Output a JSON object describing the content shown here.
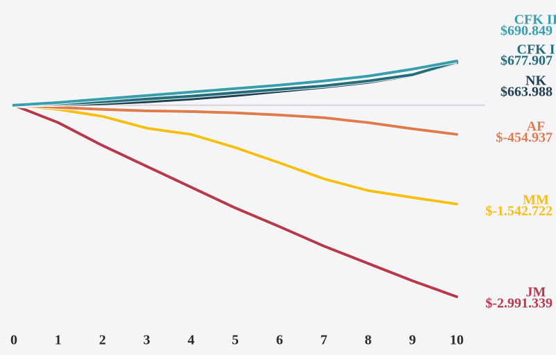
{
  "chart_data": {
    "type": "line",
    "x": [
      0,
      1,
      2,
      3,
      4,
      5,
      6,
      7,
      8,
      9,
      10
    ],
    "series": [
      {
        "name": "CFK II",
        "color": "#3a9fad",
        "values": [
          0,
          43000,
          98000,
          152000,
          206000,
          260000,
          314000,
          379000,
          455000,
          564000,
          690849
        ],
        "value_labels": [
          null,
          null,
          null,
          null,
          null,
          null,
          null,
          null,
          null,
          null,
          "$690.849"
        ]
      },
      {
        "name": "CFK I",
        "color": "#256d7b",
        "values": [
          0,
          22000,
          54000,
          98000,
          141000,
          195000,
          249000,
          303000,
          379000,
          477000,
          677907
        ],
        "value_labels": [
          null,
          null,
          null,
          null,
          null,
          null,
          null,
          null,
          null,
          null,
          "$677.907"
        ]
      },
      {
        "name": "NK",
        "color": "#1f3f52",
        "values": [
          0,
          11000,
          22000,
          54000,
          98000,
          152000,
          217000,
          282000,
          358000,
          466000,
          663988
        ],
        "value_labels": [
          null,
          null,
          null,
          null,
          null,
          null,
          null,
          null,
          null,
          null,
          "$663.988"
        ]
      },
      {
        "name": "AF",
        "color": "#e07b4e",
        "values": [
          0,
          -33000,
          -65000,
          -87000,
          -98000,
          -119000,
          -152000,
          -195000,
          -271000,
          -368000,
          -454937
        ],
        "value_labels": [
          null,
          null,
          null,
          null,
          null,
          null,
          null,
          null,
          null,
          null,
          "$-454.937"
        ]
      },
      {
        "name": "MM",
        "color": "#f7be16",
        "values": [
          0,
          -65000,
          -173000,
          -358000,
          -455000,
          -661000,
          -900000,
          -1149000,
          -1333000,
          -1441000,
          -1542722
        ],
        "value_labels": [
          null,
          null,
          null,
          null,
          null,
          null,
          null,
          null,
          null,
          null,
          "$-1.542.722"
        ]
      },
      {
        "name": "JM",
        "color": "#b8394a",
        "values": [
          0,
          -271000,
          -629000,
          -954000,
          -1279000,
          -1604000,
          -1897000,
          -2200000,
          -2471000,
          -2742000,
          -2991339
        ],
        "value_labels": [
          null,
          null,
          null,
          null,
          null,
          null,
          null,
          null,
          null,
          null,
          "$-2.991.339"
        ]
      }
    ]
  }
}
